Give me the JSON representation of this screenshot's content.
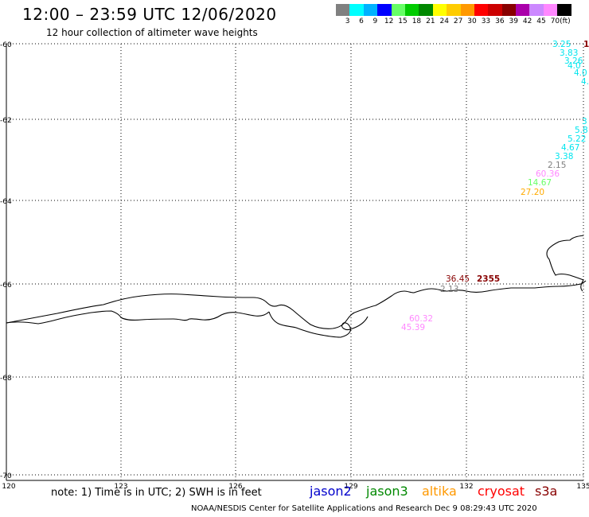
{
  "header": {
    "title": "12:00 – 23:59 UTC 12/06/2020",
    "subtitle": "12 hour collection of altimeter wave heights"
  },
  "legend": {
    "colors": [
      "#808080",
      "#00ffff",
      "#00b2ff",
      "#0000ff",
      "#66ff66",
      "#00cc00",
      "#008800",
      "#ffff00",
      "#ffcc00",
      "#ff9900",
      "#ff0000",
      "#cc0000",
      "#880000",
      "#aa00aa",
      "#cc88ff",
      "#ff88ff",
      "#000000"
    ],
    "labels": [
      "3",
      "6",
      "9",
      "12",
      "15",
      "18",
      "21",
      "24",
      "27",
      "30",
      "33",
      "36",
      "39",
      "42",
      "45",
      "70",
      "(ft)"
    ]
  },
  "axes": {
    "y_labels": [
      "-60",
      "-62",
      "-64",
      "-66",
      "-68",
      "-70"
    ],
    "x_labels": [
      "120",
      "123",
      "126",
      "129",
      "132",
      "135"
    ]
  },
  "measurements": [
    {
      "text": "3.25",
      "color": "#00e5ee"
    },
    {
      "text": "1",
      "color": "#880000"
    },
    {
      "text": "3.83",
      "color": "#00e5ee"
    },
    {
      "text": "3.26",
      "color": "#00e5ee"
    },
    {
      "text": "4.0",
      "color": "#00e5ee"
    },
    {
      "text": "4.0",
      "color": "#00e5ee"
    },
    {
      "text": "4.",
      "color": "#00e5ee"
    },
    {
      "text": "3",
      "color": "#00e5ee"
    },
    {
      "text": "5.8",
      "color": "#00e5ee"
    },
    {
      "text": "5.22",
      "color": "#00e5ee"
    },
    {
      "text": "4.67",
      "color": "#00e5ee"
    },
    {
      "text": "3.38",
      "color": "#00e5ee"
    },
    {
      "text": "2.15",
      "color": "#808080"
    },
    {
      "text": "60.36",
      "color": "#ff88ff"
    },
    {
      "text": "14.67",
      "color": "#66ff66"
    },
    {
      "text": "27.20",
      "color": "#ffaa00"
    },
    {
      "text": "36.45",
      "color": "#880000"
    },
    {
      "text": "2355",
      "color": "#880000"
    },
    {
      "text": "2.13",
      "color": "#808080"
    },
    {
      "text": "60.32",
      "color": "#ff88ff"
    },
    {
      "text": "45.39",
      "color": "#ff88ff"
    }
  ],
  "footer": {
    "note": "note: 1) Time is in UTC; 2) SWH is in feet",
    "satellites": [
      {
        "name": "jason2",
        "color": "#0000cc"
      },
      {
        "name": "jason3",
        "color": "#008800"
      },
      {
        "name": "altika",
        "color": "#ff9900"
      },
      {
        "name": "cryosat",
        "color": "#ff0000"
      },
      {
        "name": "s3a",
        "color": "#880000"
      }
    ],
    "credit": "NOAA/NESDIS Center for Satellite Applications and Research    Dec  9 08:29:43 UTC 2020"
  }
}
